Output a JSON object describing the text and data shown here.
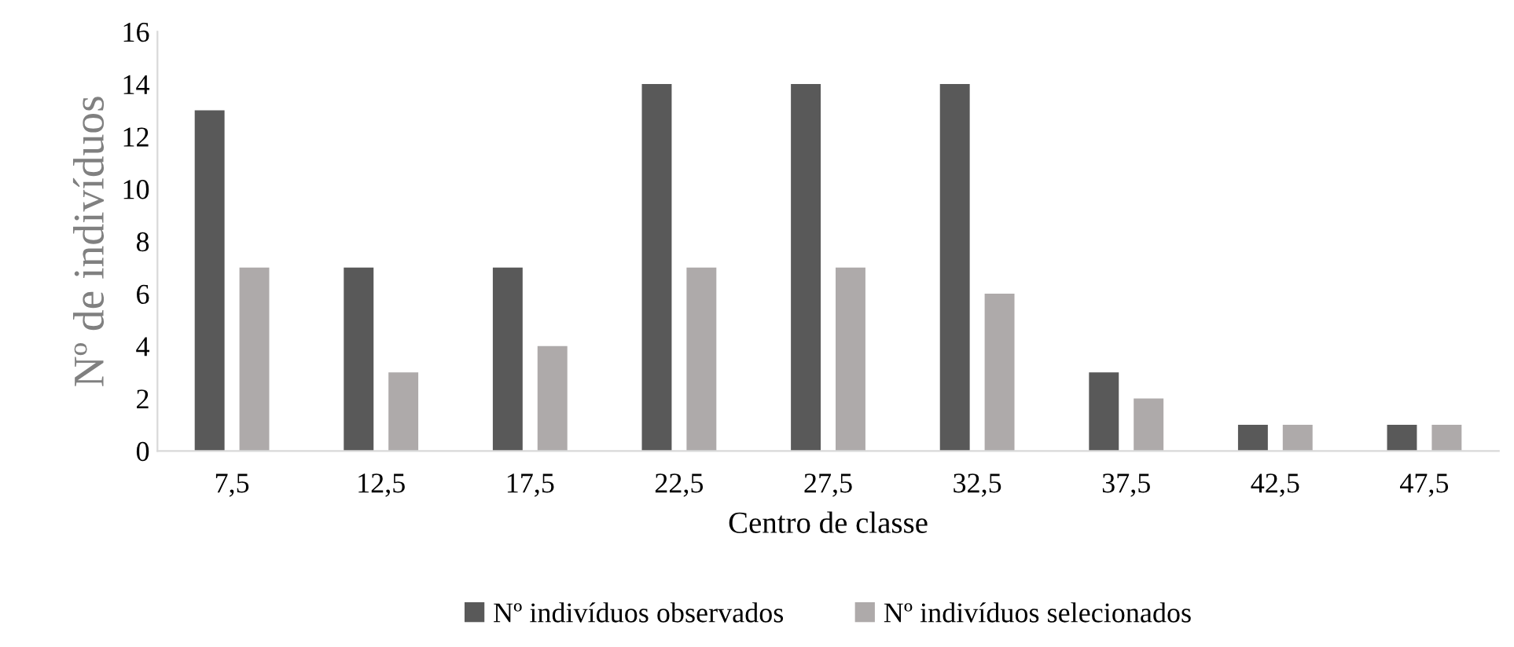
{
  "chart_data": {
    "type": "bar",
    "xlabel": "Centro de classe",
    "ylabel": "Nº de indivíduos",
    "categories": [
      "7,5",
      "12,5",
      "17,5",
      "22,5",
      "27,5",
      "32,5",
      "37,5",
      "42,5",
      "47,5"
    ],
    "series": [
      {
        "name": "Nº indivíduos observados",
        "color": "#595959",
        "values": [
          13,
          7,
          7,
          14,
          14,
          14,
          3,
          1,
          1
        ]
      },
      {
        "name": "Nº indivíduos selecionados",
        "color": "#aeaaaa",
        "values": [
          7,
          3,
          4,
          7,
          7,
          6,
          2,
          1,
          1
        ]
      }
    ],
    "ylim": [
      0,
      16
    ],
    "yticks": [
      0,
      2,
      4,
      6,
      8,
      10,
      12,
      14,
      16
    ],
    "grid": false,
    "legend": "bottom"
  }
}
